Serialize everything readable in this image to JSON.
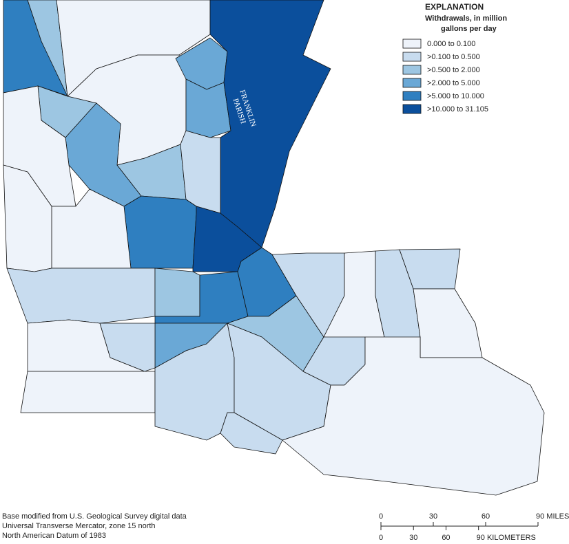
{
  "legend": {
    "title": "EXPLANATION",
    "subtitle": [
      "Withdrawals, in million",
      "gallons per day"
    ],
    "items": [
      {
        "label": "0.000 to 0.100",
        "color": "#eef3fa"
      },
      {
        "label": ">0.100 to 0.500",
        "color": "#c8dcef"
      },
      {
        "label": ">0.500 to 2.000",
        "color": "#9dc6e2"
      },
      {
        "label": ">2.000 to 5.000",
        "color": "#6aa8d6"
      },
      {
        "label": ">5.000 to 10.000",
        "color": "#2f7fc0"
      },
      {
        "label": ">10.000 to 31.105",
        "color": "#0b4f9c"
      }
    ]
  },
  "parish_label": [
    "FRANKLIN",
    "PARISH"
  ],
  "source_notes": [
    "Base modified from U.S. Geological Survey digital data",
    "Universal Transverse Mercator, zone 15 north",
    "North American Datum of 1983"
  ],
  "scale_bar": {
    "miles": [
      0,
      30,
      60,
      {
        "value": 90,
        "label": "90 MILES"
      }
    ],
    "kilometers": [
      0,
      30,
      60,
      {
        "value": 90,
        "label": "90 KILOMETERS"
      }
    ]
  }
}
